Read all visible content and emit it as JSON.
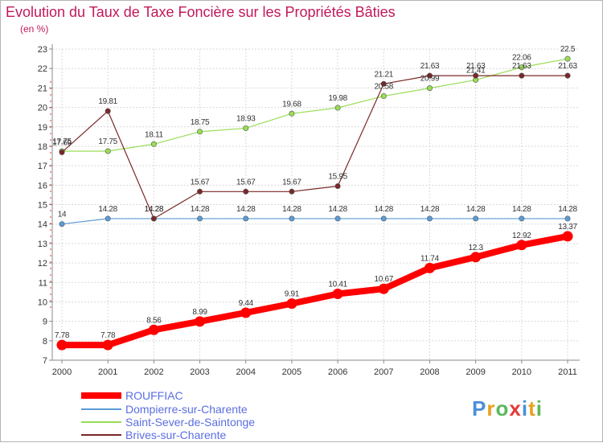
{
  "chart_data": {
    "type": "line",
    "title": "Evolution du Taux de Taxe Foncière sur les Propriétés Bâties",
    "ylabel": "(en %)",
    "xlabel": "",
    "ylim": [
      7,
      23
    ],
    "y_ticks": [
      "7",
      "8",
      "9",
      "10",
      "11",
      "12",
      "13",
      "14",
      "15",
      "16",
      "17",
      "18",
      "19",
      "20",
      "21",
      "22",
      "23"
    ],
    "grid": true,
    "legend_position": "bottom-left",
    "categories": [
      "2000",
      "2001",
      "2002",
      "2003",
      "2004",
      "2005",
      "2006",
      "2007",
      "2008",
      "2009",
      "2010",
      "2011"
    ],
    "series": [
      {
        "name": "ROUFFIAC",
        "color": "#ff0000",
        "values": [
          7.78,
          7.78,
          8.56,
          8.99,
          9.44,
          9.91,
          10.41,
          10.67,
          11.74,
          12.3,
          12.92,
          13.37
        ],
        "labels": [
          "7.78",
          "7.78",
          "8.56",
          "8.99",
          "9.44",
          "9.91",
          "10.41",
          "10.67",
          "11.74",
          "12.3",
          "12.92",
          "13.37"
        ]
      },
      {
        "name": "Dompierre-sur-Charente",
        "color": "#5b9bd5",
        "values": [
          14,
          14.28,
          14.28,
          14.28,
          14.28,
          14.28,
          14.28,
          14.28,
          14.28,
          14.28,
          14.28,
          14.28
        ],
        "labels": [
          "14",
          "14.28",
          "14.28",
          "14.28",
          "14.28",
          "14.28",
          "14.28",
          "14.28",
          "14.28",
          "14.28",
          "14.28",
          "14.28"
        ]
      },
      {
        "name": "Saint-Sever-de-Saintonge",
        "color": "#99dd55",
        "values": [
          17.75,
          17.75,
          18.11,
          18.75,
          18.93,
          19.68,
          19.98,
          20.58,
          20.99,
          21.41,
          22.06,
          22.5
        ],
        "labels": [
          "17.75",
          "17.75",
          "18.11",
          "18.75",
          "18.93",
          "19.68",
          "19.98",
          "20.58",
          "20.99",
          "21.41",
          "22.06",
          "22.5"
        ]
      },
      {
        "name": "Brives-sur-Charente",
        "color": "#7a2828",
        "values": [
          17.69,
          19.81,
          14.28,
          15.67,
          15.67,
          15.67,
          15.95,
          21.21,
          21.63,
          21.63,
          21.63,
          21.63
        ],
        "labels": [
          "17.69",
          "19.81",
          "14.28",
          "15.67",
          "15.67",
          "15.67",
          "15.95",
          "21.21",
          "21.63",
          "21.63",
          "21.63",
          "21.63"
        ]
      }
    ]
  },
  "logo": {
    "text": "Proxiti"
  }
}
